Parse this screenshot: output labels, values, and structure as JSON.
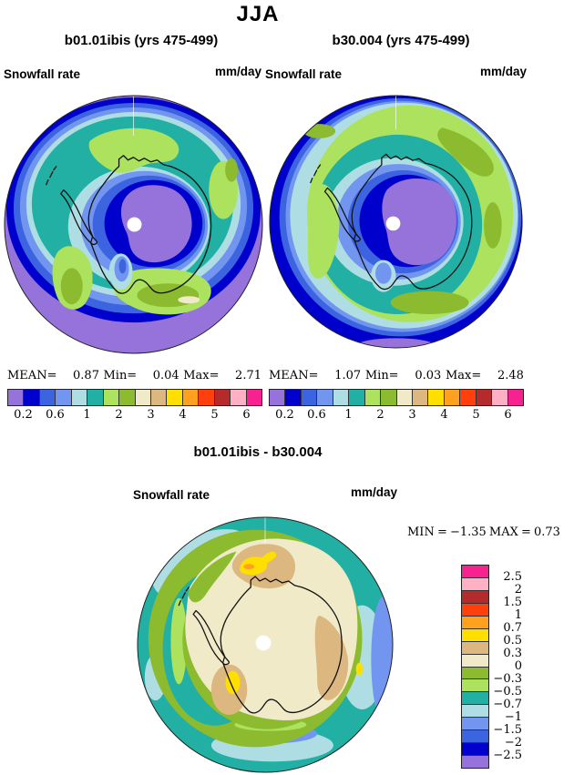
{
  "title": "JJA",
  "panels": [
    {
      "title": "b01.01ibis (yrs 475-499)",
      "field_label": "Snowfall rate",
      "units": "mm/day",
      "stats": {
        "mean_label": "MEAN=",
        "mean": "0.87",
        "min_label": "Min=",
        "min": "0.04",
        "max_label": "Max=",
        "max": "2.71"
      }
    },
    {
      "title": "b30.004 (yrs 475-499)",
      "field_label": "Snowfall rate",
      "units": "mm/day",
      "stats": {
        "mean_label": "MEAN=",
        "mean": "1.07",
        "min_label": "Min=",
        "min": "0.03",
        "max_label": "Max=",
        "max": "2.48"
      }
    }
  ],
  "diff": {
    "title": "b01.01ibis - b30.004",
    "field_label": "Snowfall rate",
    "units": "mm/day",
    "stats": {
      "min_label": "MIN",
      "eq1": "=",
      "min": "−1.35",
      "max_label": "MAX",
      "eq2": "=",
      "max": "0.73"
    }
  },
  "palette": {
    "purple": "#9673DB",
    "darkblue": "#0000CC",
    "royal": "#3C64E1",
    "cornflower": "#7296F0",
    "palecyan": "#AEDEE4",
    "teal": "#22AFA4",
    "lightgreen": "#ACE25E",
    "applegreen": "#8CBB2F",
    "beige": "#F0EAC8",
    "tan": "#DCB880",
    "yellow": "#FFDF00",
    "orange": "#FFA01E",
    "redorange": "#FF400D",
    "brickred": "#B52A2A",
    "pink": "#FFB0C4",
    "magenta": "#F7218F",
    "coast": "#111111",
    "map_edge": "#222222",
    "white": "#FFFFFF"
  },
  "colorbar_rate": {
    "orientation": "horizontal",
    "colors": [
      "#9673DB",
      "#0000CC",
      "#3C64E1",
      "#7296F0",
      "#AEDEE4",
      "#22AFA4",
      "#ACE25E",
      "#8CBB2F",
      "#F0EAC8",
      "#DCB880",
      "#FFDF00",
      "#FFA01E",
      "#FF400D",
      "#B52A2A",
      "#FFB0C4",
      "#F7218F"
    ],
    "labels": [
      "0.2",
      "0.6",
      "1",
      "2",
      "3",
      "4",
      "5",
      "6"
    ],
    "label_boundaries": [
      1,
      3,
      5,
      7,
      9,
      11,
      13,
      15
    ]
  },
  "colorbar_diff": {
    "orientation": "vertical",
    "colors": [
      "#F7218F",
      "#FFB0C4",
      "#B52A2A",
      "#FF400D",
      "#FFA01E",
      "#FFDF00",
      "#DCB880",
      "#F0EAC8",
      "#8CBB2F",
      "#ACE25E",
      "#22AFA4",
      "#AEDEE4",
      "#7296F0",
      "#3C64E1",
      "#0000CC",
      "#9673DB"
    ],
    "labels": [
      "2.5",
      "2",
      "1.5",
      "1",
      "0.7",
      "0.5",
      "0.3",
      "0",
      "−0.3",
      "−0.5",
      "−0.7",
      "−1",
      "−1.5",
      "−2",
      "−2.5"
    ],
    "label_boundaries": [
      1,
      2,
      3,
      4,
      5,
      6,
      7,
      8,
      9,
      10,
      11,
      12,
      13,
      14,
      15
    ]
  },
  "chart_data": [
    {
      "type": "heatmap",
      "subtype": "polar_stereographic_filled_contour",
      "region": "Antarctica",
      "season": "JJA",
      "title": "b01.01ibis (yrs 475-499)",
      "variable": "Snowfall rate",
      "units": "mm/day",
      "stats": {
        "mean": 0.87,
        "min": 0.04,
        "max": 2.71
      },
      "contour_levels": [
        0.2,
        0.4,
        0.6,
        0.8,
        1,
        1.5,
        2,
        2.5,
        3,
        3.5,
        4,
        4.5,
        5,
        5.5,
        6
      ],
      "labeled_levels": [
        0.2,
        0.6,
        1,
        2,
        3,
        4,
        5,
        6
      ],
      "legend_position": "below"
    },
    {
      "type": "heatmap",
      "subtype": "polar_stereographic_filled_contour",
      "region": "Antarctica",
      "season": "JJA",
      "title": "b30.004 (yrs 475-499)",
      "variable": "Snowfall rate",
      "units": "mm/day",
      "stats": {
        "mean": 1.07,
        "min": 0.03,
        "max": 2.48
      },
      "contour_levels": [
        0.2,
        0.4,
        0.6,
        0.8,
        1,
        1.5,
        2,
        2.5,
        3,
        3.5,
        4,
        4.5,
        5,
        5.5,
        6
      ],
      "labeled_levels": [
        0.2,
        0.6,
        1,
        2,
        3,
        4,
        5,
        6
      ],
      "legend_position": "below"
    },
    {
      "type": "heatmap",
      "subtype": "polar_stereographic_filled_contour",
      "region": "Antarctica",
      "season": "JJA",
      "title": "b01.01ibis - b30.004",
      "variable": "Snowfall rate difference",
      "units": "mm/day",
      "stats": {
        "min": -1.35,
        "max": 0.73
      },
      "contour_levels": [
        -2.5,
        -2,
        -1.5,
        -1,
        -0.7,
        -0.5,
        -0.3,
        0,
        0.3,
        0.5,
        0.7,
        1,
        1.5,
        2,
        2.5
      ],
      "legend_position": "right"
    }
  ]
}
